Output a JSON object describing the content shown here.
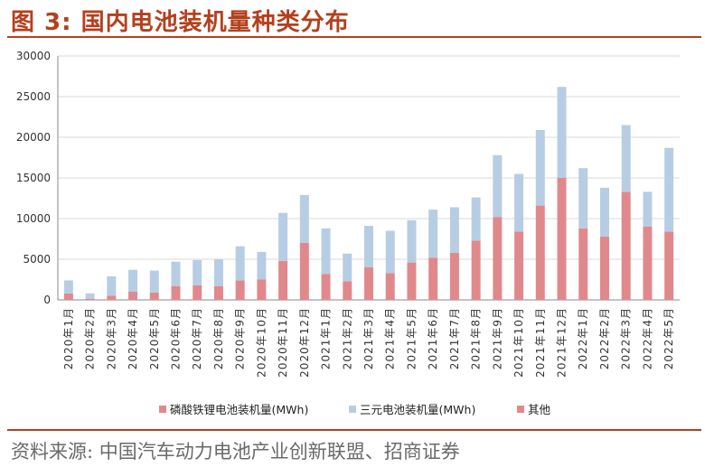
{
  "header": {
    "title": "图 3: 国内电池装机量种类分布"
  },
  "source": "资料来源: 中国汽车动力电池产业创新联盟、招商证券",
  "chart_data": {
    "type": "bar",
    "stacked": true,
    "categories": [
      "2020年1月",
      "2020年2月",
      "2020年3月",
      "2020年4月",
      "2020年5月",
      "2020年6月",
      "2020年7月",
      "2020年8月",
      "2020年9月",
      "2020年10月",
      "2020年11月",
      "2020年12月",
      "2021年1月",
      "2021年2月",
      "2021年3月",
      "2021年4月",
      "2021年5月",
      "2021年6月",
      "2021年7月",
      "2021年8月",
      "2021年9月",
      "2021年10月",
      "2021年11月",
      "2021年12月",
      "2022年1月",
      "2022年2月",
      "2022年3月",
      "2022年4月",
      "2022年5月"
    ],
    "series": [
      {
        "name": "磷酸铁锂电池装机量(MWh)",
        "color": "#e0898d",
        "values": [
          800,
          150,
          500,
          1000,
          900,
          1700,
          1800,
          1700,
          2400,
          2500,
          4800,
          7000,
          3200,
          2300,
          4000,
          3300,
          4600,
          5200,
          5800,
          7300,
          10200,
          8400,
          11600,
          15000,
          8800,
          7800,
          13300,
          9000,
          8400
        ]
      },
      {
        "name": "三元电池装机量(MWh)",
        "color": "#b7cde3",
        "values": [
          1600,
          650,
          2400,
          2700,
          2700,
          3000,
          3100,
          3300,
          4200,
          3400,
          5900,
          5900,
          5600,
          3400,
          5100,
          5200,
          5200,
          5900,
          5600,
          5300,
          7600,
          7100,
          9300,
          11200,
          7400,
          6000,
          8200,
          4300,
          10300
        ]
      },
      {
        "name": "其他",
        "color": "#e0898d",
        "values": [
          0,
          0,
          0,
          0,
          0,
          0,
          0,
          0,
          0,
          0,
          0,
          0,
          0,
          0,
          0,
          0,
          0,
          0,
          0,
          0,
          0,
          0,
          0,
          0,
          0,
          0,
          0,
          0,
          0
        ]
      }
    ],
    "yticks": [
      "0",
      "5000",
      "10000",
      "15000",
      "20000",
      "25000",
      "30000"
    ],
    "ylim": [
      0,
      30000
    ],
    "grid": true,
    "legend_position": "bottom"
  }
}
